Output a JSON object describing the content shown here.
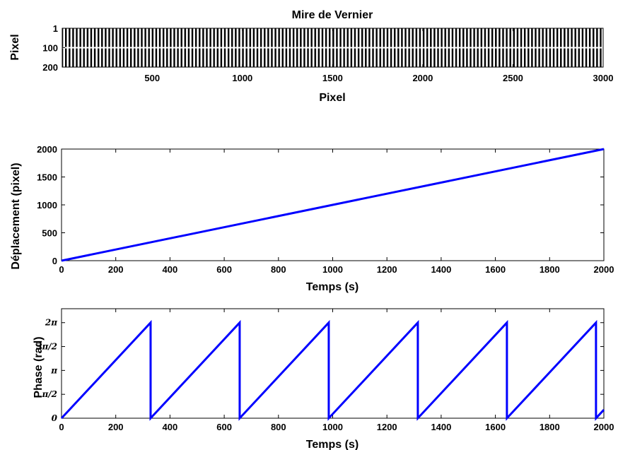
{
  "chart_data": [
    {
      "type": "heatmap",
      "title": "Mire de Vernier",
      "xlabel": "Pixel",
      "ylabel": "Pixel",
      "xlim": [
        1,
        3000
      ],
      "ylim": [
        1,
        200
      ],
      "x_ticks": [
        "500",
        "1000",
        "1500",
        "2000",
        "2500",
        "3000"
      ],
      "y_ticks": [
        "1",
        "100",
        "200"
      ],
      "stripe_period_pixels": 20,
      "colormap": [
        "#000000",
        "#ffffff"
      ]
    },
    {
      "type": "line",
      "title": "",
      "xlabel": "Temps (s)",
      "ylabel": "Déplacement (pixel)",
      "xlim": [
        0,
        2000
      ],
      "ylim": [
        0,
        2000
      ],
      "x_ticks": [
        "0",
        "200",
        "400",
        "600",
        "800",
        "1000",
        "1200",
        "1400",
        "1600",
        "1800",
        "2000"
      ],
      "y_ticks": [
        "0",
        "500",
        "1000",
        "1500",
        "2000"
      ],
      "series": [
        {
          "color": "#0000ff",
          "x": [
            0,
            2000
          ],
          "y": [
            0,
            2000
          ]
        }
      ]
    },
    {
      "type": "line",
      "title": "",
      "xlabel": "Temps (s)",
      "ylabel": "Phase (rad)",
      "xlim": [
        0,
        2000
      ],
      "ylim": [
        0,
        7.2
      ],
      "x_ticks": [
        "0",
        "200",
        "400",
        "600",
        "800",
        "1000",
        "1200",
        "1400",
        "1600",
        "1800",
        "2000"
      ],
      "y_ticks": [
        {
          "value": 0,
          "label": "0"
        },
        {
          "value": 1.5708,
          "label": "π/2"
        },
        {
          "value": 3.1416,
          "label": "π"
        },
        {
          "value": 4.7124,
          "label": "3π/2"
        },
        {
          "value": 6.2832,
          "label": "2π"
        }
      ],
      "series": [
        {
          "color": "#0000ff",
          "x": [
            0,
            328.5,
            328.5,
            657,
            657,
            985.5,
            985.5,
            1314,
            1314,
            1642.5,
            1642.5,
            1971,
            1971,
            2000
          ],
          "y": [
            0,
            6.2832,
            0,
            6.2832,
            0,
            6.2832,
            0,
            6.2832,
            0,
            6.2832,
            0,
            6.2832,
            0,
            0.555
          ]
        }
      ]
    }
  ]
}
